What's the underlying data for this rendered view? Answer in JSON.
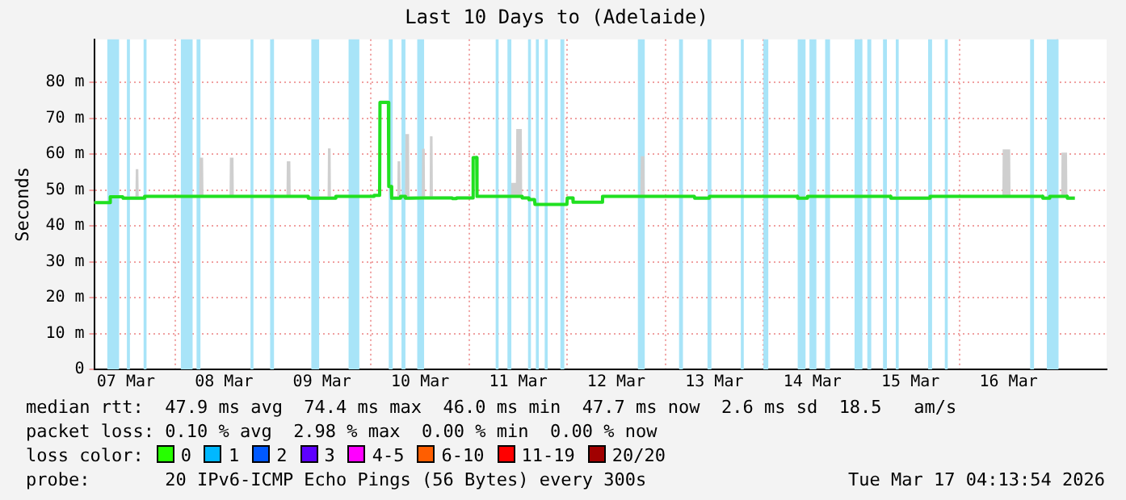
{
  "chart_data": {
    "type": "line",
    "title": "Last 10 Days to (Adelaide)",
    "ylabel": "Seconds",
    "x": [
      "2026-03-07T04:13",
      "2026-03-07T08:05",
      "2026-03-07T08:10",
      "2026-03-07T11:12",
      "2026-03-07T11:17",
      "2026-03-07T14:19",
      "2026-03-07T14:24",
      "2026-03-07T15:02",
      "2026-03-07T15:07",
      "2026-03-07T16:29",
      "2026-03-07T16:34",
      "2026-03-08T05:55",
      "2026-03-08T06:00",
      "2026-03-08T06:53",
      "2026-03-08T06:58",
      "2026-03-08T13:21",
      "2026-03-08T13:26",
      "2026-03-08T14:19",
      "2026-03-08T14:24",
      "2026-03-09T03:17",
      "2026-03-09T03:22",
      "2026-03-09T04:14",
      "2026-03-09T04:19",
      "2026-03-09T08:33",
      "2026-03-09T08:38",
      "2026-03-09T13:21",
      "2026-03-09T13:26",
      "2026-03-09T14:05",
      "2026-03-09T14:10",
      "2026-03-09T15:17",
      "2026-03-09T15:22",
      "2026-03-10T00:38",
      "2026-03-10T00:43",
      "2026-03-10T02:05",
      "2026-03-10T02:10",
      "2026-03-10T04:14",
      "2026-03-10T04:19",
      "2026-03-10T04:57",
      "2026-03-10T05:02",
      "2026-03-10T06:24",
      "2026-03-10T06:29",
      "2026-03-10T07:07",
      "2026-03-10T07:12",
      "2026-03-10T08:19",
      "2026-03-10T08:24",
      "2026-03-10T09:17",
      "2026-03-10T09:22",
      "2026-03-10T12:24",
      "2026-03-10T12:29",
      "2026-03-10T13:07",
      "2026-03-10T13:12",
      "2026-03-10T14:19",
      "2026-03-10T14:24",
      "2026-03-10T15:02",
      "2026-03-10T15:07",
      "2026-03-10T19:50",
      "2026-03-10T19:55",
      "2026-03-10T20:48",
      "2026-03-10T20:53",
      "2026-03-11T00:53",
      "2026-03-11T00:58",
      "2026-03-11T01:50",
      "2026-03-11T01:55",
      "2026-03-11T10:14",
      "2026-03-11T10:19",
      "2026-03-11T11:26",
      "2026-03-11T11:31",
      "2026-03-11T12:53",
      "2026-03-11T12:58",
      "2026-03-11T14:33",
      "2026-03-11T14:38",
      "2026-03-11T16:00",
      "2026-03-11T16:05",
      "2026-03-11T23:55",
      "2026-03-12T00:00",
      "2026-03-12T01:21",
      "2026-03-12T01:26",
      "2026-03-12T08:33",
      "2026-03-12T08:38",
      "2026-03-12T17:55",
      "2026-03-12T18:00",
      "2026-03-12T18:53",
      "2026-03-12T18:58",
      "2026-03-13T07:07",
      "2026-03-13T07:12",
      "2026-03-13T10:43",
      "2026-03-13T10:48",
      "2026-03-14T08:19",
      "2026-03-14T08:24",
      "2026-03-14T10:43",
      "2026-03-14T10:48",
      "2026-03-15T07:07",
      "2026-03-15T07:12",
      "2026-03-15T16:43",
      "2026-03-15T16:48",
      "2026-03-16T10:29",
      "2026-03-16T10:34",
      "2026-03-16T12:24",
      "2026-03-16T12:29",
      "2026-03-16T20:19",
      "2026-03-16T20:24",
      "2026-03-16T22:00",
      "2026-03-16T22:05",
      "2026-03-17T00:53",
      "2026-03-17T00:58",
      "2026-03-17T02:19",
      "2026-03-17T02:24",
      "2026-03-17T04:13"
    ],
    "series": [
      {
        "color": "#20e020",
        "values": [
          46.5,
          46.5,
          48.1,
          48.1,
          47.7,
          47.7,
          47.7,
          47.7,
          47.7,
          47.7,
          48.2,
          48.2,
          48.2,
          48.2,
          48.2,
          48.2,
          48.2,
          48.2,
          48.2,
          48.2,
          48.2,
          48.2,
          48.2,
          48.2,
          47.7,
          47.7,
          47.7,
          47.7,
          47.7,
          47.7,
          48.2,
          48.2,
          48.5,
          48.5,
          74.4,
          74.4,
          51,
          51,
          47.7,
          47.7,
          47.7,
          47.7,
          48.2,
          48.2,
          47.7,
          47.7,
          47.7,
          47.8,
          47.8,
          47.8,
          47.8,
          47.8,
          47.8,
          47.8,
          47.8,
          47.8,
          47.6,
          47.6,
          47.8,
          47.8,
          59,
          59,
          48.2,
          48.2,
          48.2,
          48.2,
          48.2,
          48.2,
          47.8,
          47.8,
          47.3,
          47.3,
          46.0,
          46.0,
          47.8,
          47.8,
          46.6,
          46.6,
          48.2,
          48.2,
          48.2,
          48.2,
          48.2,
          48.2,
          47.7,
          47.7,
          48.2,
          48.2,
          47.7,
          47.7,
          48.2,
          48.2,
          47.7,
          47.7,
          48.2,
          48.2,
          48.2,
          48.2,
          48.2,
          48.2,
          47.7,
          47.7,
          48.2,
          48.2,
          48.2,
          48.2,
          47.7,
          47.7
        ],
        "lower": [
          46.2,
          46.2,
          47.8,
          47.8,
          47.4,
          47.4,
          47.4,
          47.4,
          47.4,
          47.4,
          47.9,
          47.9,
          47.9,
          47.9,
          47.9,
          47.9,
          47.9,
          47.9,
          47.9,
          47.9,
          47.9,
          47.9,
          47.9,
          47.9,
          47.4,
          47.4,
          47.4,
          47.4,
          47.4,
          47.4,
          47.9,
          47.9,
          48.2,
          48.2,
          74.1,
          74.1,
          50.7,
          50.7,
          47.4,
          47.4,
          47.4,
          47.4,
          47.9,
          47.9,
          47.4,
          47.4,
          47.4,
          47.5,
          47.5,
          47.5,
          47.5,
          47.5,
          47.5,
          47.5,
          47.5,
          47.5,
          47.3,
          47.3,
          47.5,
          47.5,
          58.7,
          58.7,
          47.9,
          47.9,
          47.9,
          47.9,
          47.9,
          47.9,
          47.5,
          47.5,
          47.0,
          47.0,
          45.7,
          45.7,
          47.5,
          47.5,
          46.3,
          46.3,
          47.9,
          47.9,
          47.9,
          47.9,
          47.9,
          47.9,
          47.4,
          47.4,
          47.9,
          47.9,
          47.4,
          47.4,
          47.9,
          47.9,
          47.4,
          47.4,
          47.9,
          47.9,
          47.9,
          47.9,
          47.9,
          47.9,
          47.4,
          47.4,
          47.9,
          47.9,
          47.9,
          47.9,
          47.4,
          47.4
        ],
        "upper": [
          46.8,
          46.8,
          48.5,
          48.5,
          48.2,
          48.2,
          55.8,
          55.8,
          48.2,
          48.2,
          48.6,
          48.6,
          59,
          59,
          48.6,
          48.6,
          59,
          59,
          48.6,
          48.6,
          58,
          58,
          48.6,
          48.6,
          48.2,
          48.2,
          61.6,
          61.6,
          48.2,
          48.2,
          48.6,
          48.6,
          48.8,
          48.8,
          75,
          75,
          51.3,
          51.3,
          48.2,
          48.2,
          58,
          58,
          48.6,
          48.6,
          65.6,
          65.6,
          48.2,
          48.2,
          61.5,
          61.5,
          48.2,
          48.2,
          65,
          65,
          48.2,
          48.2,
          48.0,
          48.0,
          48.2,
          48.2,
          59.5,
          59.5,
          48.6,
          48.6,
          52,
          52,
          67,
          67,
          48.2,
          48.2,
          47.8,
          47.8,
          46.3,
          46.3,
          48.2,
          48.2,
          47.0,
          47.0,
          48.6,
          48.6,
          59.4,
          59.4,
          48.6,
          48.6,
          48.2,
          48.2,
          48.6,
          48.6,
          48.2,
          48.2,
          48.6,
          48.6,
          48.2,
          48.2,
          48.6,
          48.6,
          61.3,
          61.3,
          48.6,
          48.6,
          48.2,
          48.2,
          48.6,
          48.6,
          60.4,
          60.4,
          48.2,
          48.2
        ]
      }
    ],
    "xlim": [
      "2026-03-07T04:13",
      "2026-03-17T12:00"
    ],
    "xticks": [
      {
        "value": "2026-03-07T12:00",
        "label": "07 Mar"
      },
      {
        "value": "2026-03-08T12:00",
        "label": "08 Mar"
      },
      {
        "value": "2026-03-09T12:00",
        "label": "09 Mar"
      },
      {
        "value": "2026-03-10T12:00",
        "label": "10 Mar"
      },
      {
        "value": "2026-03-11T12:00",
        "label": "11 Mar"
      },
      {
        "value": "2026-03-12T12:00",
        "label": "12 Mar"
      },
      {
        "value": "2026-03-13T12:00",
        "label": "13 Mar"
      },
      {
        "value": "2026-03-14T12:00",
        "label": "14 Mar"
      },
      {
        "value": "2026-03-15T12:00",
        "label": "15 Mar"
      },
      {
        "value": "2026-03-16T12:00",
        "label": "16 Mar"
      },
      {
        "value": "2026-03-08T00:00",
        "label": null
      },
      {
        "value": "2026-03-09T00:00",
        "label": null
      },
      {
        "value": "2026-03-10T00:00",
        "label": null
      },
      {
        "value": "2026-03-11T00:00",
        "label": null
      },
      {
        "value": "2026-03-12T00:00",
        "label": null
      },
      {
        "value": "2026-03-13T00:00",
        "label": null
      },
      {
        "value": "2026-03-14T00:00",
        "label": null
      },
      {
        "value": "2026-03-15T00:00",
        "label": null
      },
      {
        "value": "2026-03-16T00:00",
        "label": null
      },
      {
        "value": "2026-03-17T00:00",
        "label": null
      }
    ],
    "ylim": [
      0,
      92
    ],
    "yticks": [
      0,
      {
        "value": 10,
        "label": "10 m"
      },
      {
        "value": 20,
        "label": "20 m"
      },
      {
        "value": 30,
        "label": "30 m"
      },
      {
        "value": 40,
        "label": "40 m"
      },
      {
        "value": 50,
        "label": "50 m"
      },
      {
        "value": 60,
        "label": "60 m"
      },
      {
        "value": 70,
        "label": "70 m"
      },
      {
        "value": 80,
        "label": "80 m"
      }
    ],
    "grid": true,
    "bands": [
      {
        "axis": "x",
        "from": "2026-03-07T07:26",
        "to": "2026-03-07T10:19",
        "color": "#a8e4f8"
      },
      {
        "axis": "x",
        "from": "2026-03-07T12:14",
        "to": "2026-03-07T12:58",
        "color": "#a8e4f8"
      },
      {
        "axis": "x",
        "from": "2026-03-07T16:19",
        "to": "2026-03-07T17:02",
        "color": "#a8e4f8"
      },
      {
        "axis": "x",
        "from": "2026-03-08T01:26",
        "to": "2026-03-08T04:19",
        "color": "#a8e4f8"
      },
      {
        "axis": "x",
        "from": "2026-03-08T05:17",
        "to": "2026-03-08T06:14",
        "color": "#a8e4f8"
      },
      {
        "axis": "x",
        "from": "2026-03-08T18:29",
        "to": "2026-03-08T19:12",
        "color": "#a8e4f8"
      },
      {
        "axis": "x",
        "from": "2026-03-08T23:17",
        "to": "2026-03-09T00:14",
        "color": "#a8e4f8"
      },
      {
        "axis": "x",
        "from": "2026-03-09T09:22",
        "to": "2026-03-09T11:17",
        "color": "#a8e4f8"
      },
      {
        "axis": "x",
        "from": "2026-03-09T18:29",
        "to": "2026-03-09T21:07",
        "color": "#a8e4f8"
      },
      {
        "axis": "x",
        "from": "2026-03-10T04:19",
        "to": "2026-03-10T05:17",
        "color": "#a8e4f8"
      },
      {
        "axis": "x",
        "from": "2026-03-10T07:26",
        "to": "2026-03-10T08:24",
        "color": "#a8e4f8"
      },
      {
        "axis": "x",
        "from": "2026-03-10T11:17",
        "to": "2026-03-10T12:58",
        "color": "#a8e4f8"
      },
      {
        "axis": "x",
        "from": "2026-03-11T06:29",
        "to": "2026-03-11T07:12",
        "color": "#a8e4f8"
      },
      {
        "axis": "x",
        "from": "2026-03-11T09:22",
        "to": "2026-03-11T10:19",
        "color": "#a8e4f8"
      },
      {
        "axis": "x",
        "from": "2026-03-11T14:24",
        "to": "2026-03-11T15:07",
        "color": "#a8e4f8"
      },
      {
        "axis": "x",
        "from": "2026-03-11T16:19",
        "to": "2026-03-11T17:02",
        "color": "#a8e4f8"
      },
      {
        "axis": "x",
        "from": "2026-03-11T18:29",
        "to": "2026-03-11T19:12",
        "color": "#a8e4f8"
      },
      {
        "axis": "x",
        "from": "2026-03-11T22:19",
        "to": "2026-03-11T23:17",
        "color": "#a8e4f8"
      },
      {
        "axis": "x",
        "from": "2026-03-12T17:17",
        "to": "2026-03-12T18:58",
        "color": "#a8e4f8"
      },
      {
        "axis": "x",
        "from": "2026-03-13T03:22",
        "to": "2026-03-13T04:19",
        "color": "#a8e4f8"
      },
      {
        "axis": "x",
        "from": "2026-03-13T10:19",
        "to": "2026-03-13T11:17",
        "color": "#a8e4f8"
      },
      {
        "axis": "x",
        "from": "2026-03-13T18:29",
        "to": "2026-03-13T19:12",
        "color": "#a8e4f8"
      },
      {
        "axis": "x",
        "from": "2026-03-14T00:00",
        "to": "2026-03-14T01:12",
        "color": "#a8e4f8"
      },
      {
        "axis": "x",
        "from": "2026-03-14T08:24",
        "to": "2026-03-14T10:19",
        "color": "#a8e4f8"
      },
      {
        "axis": "x",
        "from": "2026-03-14T11:17",
        "to": "2026-03-14T12:58",
        "color": "#a8e4f8"
      },
      {
        "axis": "x",
        "from": "2026-03-14T15:07",
        "to": "2026-03-14T16:19",
        "color": "#a8e4f8"
      },
      {
        "axis": "x",
        "from": "2026-03-14T22:19",
        "to": "2026-03-15T00:14",
        "color": "#a8e4f8"
      },
      {
        "axis": "x",
        "from": "2026-03-15T01:26",
        "to": "2026-03-15T02:24",
        "color": "#a8e4f8"
      },
      {
        "axis": "x",
        "from": "2026-03-15T05:17",
        "to": "2026-03-15T06:14",
        "color": "#a8e4f8"
      },
      {
        "axis": "x",
        "from": "2026-03-15T08:24",
        "to": "2026-03-15T09:07",
        "color": "#a8e4f8"
      },
      {
        "axis": "x",
        "from": "2026-03-15T16:19",
        "to": "2026-03-15T17:17",
        "color": "#a8e4f8"
      },
      {
        "axis": "x",
        "from": "2026-03-15T20:24",
        "to": "2026-03-15T21:07",
        "color": "#a8e4f8"
      },
      {
        "axis": "x",
        "from": "2026-03-16T17:17",
        "to": "2026-03-16T18:14",
        "color": "#a8e4f8"
      },
      {
        "axis": "x",
        "from": "2026-03-16T21:22",
        "to": "2026-03-17T00:14",
        "color": "#a8e4f8"
      }
    ],
    "annotations": [
      "median rtt:  47.9 ms avg  74.4 ms max  46.0 ms min  47.7 ms now  2.6 ms sd  18.5   am/s",
      "packet loss: 0.10 % avg  2.98 % max  0.00 % min  0.00 % now",
      "loss color:  0  1  2  3  4-5  6-10  11-19  20/20",
      "probe:       20 IPv6-ICMP Echo Pings (56 Bytes) every 300s",
      "Tue Mar 17 04:13:54 2026"
    ],
    "legend": false
  }
}
